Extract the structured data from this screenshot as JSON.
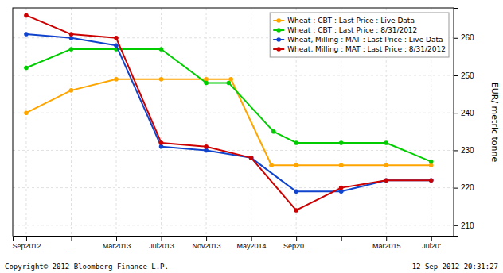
{
  "chart_data": {
    "type": "line",
    "y_label": "EUR/ metric tonne",
    "xlim": [
      -0.3,
      9.5
    ],
    "xticks": [
      {
        "value": 0,
        "label": "Sep2012"
      },
      {
        "value": 1,
        "label": "..."
      },
      {
        "value": 2,
        "label": "Mar2013"
      },
      {
        "value": 3,
        "label": "Jul2013"
      },
      {
        "value": 4,
        "label": "Nov2013"
      },
      {
        "value": 5,
        "label": "May2014"
      },
      {
        "value": 6,
        "label": "Sep20..."
      },
      {
        "value": 7,
        "label": "..."
      },
      {
        "value": 8,
        "label": "Mar2015"
      },
      {
        "value": 9,
        "label": "Jul20:"
      }
    ],
    "ylim": [
      207,
      268
    ],
    "yticks": [
      210,
      220,
      230,
      240,
      250,
      260
    ],
    "grid": true,
    "legend": "top-right",
    "marker": "circle",
    "series": [
      {
        "name": "Wheat : CBT : Last Price : Live Data",
        "color": "#FFA500",
        "x": [
          0,
          1,
          2,
          3,
          4,
          4.55,
          5.45,
          6,
          7,
          8,
          9
        ],
        "values": [
          240,
          246,
          249,
          249,
          249,
          249,
          226,
          226,
          226,
          226,
          226
        ]
      },
      {
        "name": "Wheat : CBT : Last Price : 8/31/2012",
        "color": "#00CC00",
        "x": [
          0,
          1,
          2,
          3,
          4,
          4.5,
          5.5,
          6,
          7,
          8,
          9
        ],
        "values": [
          252,
          257,
          257,
          257,
          248,
          248,
          235,
          232,
          232,
          232,
          227
        ]
      },
      {
        "name": "Wheat, Milling : MAT : Last Price : Live Data",
        "color": "#1144CC",
        "x": [
          0,
          1,
          2,
          3,
          4,
          5,
          6,
          7,
          8,
          9
        ],
        "values": [
          261,
          260,
          258,
          231,
          230,
          228,
          219,
          219,
          222,
          222
        ]
      },
      {
        "name": "Wheat, Milling : MAT : Last Price : 8/31/2012",
        "color": "#CC0000",
        "x": [
          0,
          1,
          2,
          3,
          4,
          5,
          6,
          7,
          8,
          9
        ],
        "values": [
          266,
          261,
          260,
          232,
          231,
          228,
          214,
          220,
          222,
          222
        ]
      }
    ],
    "annotations": [
      "Copyright© 2012 Bloomberg Finance L.P.",
      "12-Sep-2012 20:31:27"
    ]
  }
}
